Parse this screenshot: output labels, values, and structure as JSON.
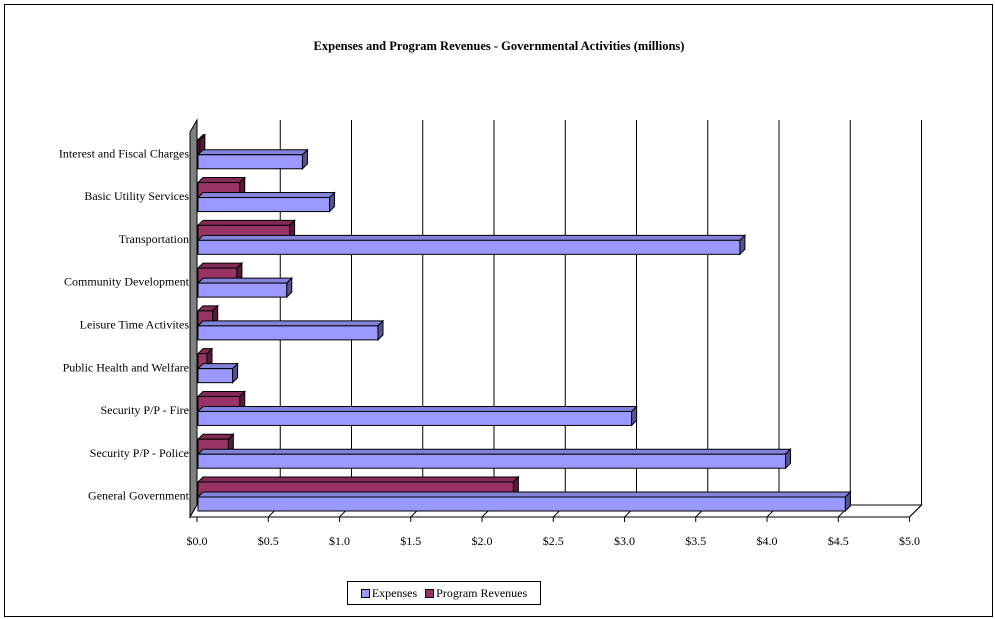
{
  "chart_data": {
    "type": "bar",
    "orientation": "horizontal",
    "title": "Expenses and Program Revenues - Governmental Activities (millions)",
    "categories": [
      "General Government",
      "Security P/P - Police",
      "Security P/P - Fire",
      "Public Health and Welfare",
      "Leisure Time Activites",
      "Community Development",
      "Transportation",
      "Basic Utility Services",
      "Interest and Fiscal Charges"
    ],
    "series": [
      {
        "name": "Expenses",
        "color": "#9999ff",
        "values": [
          4.55,
          4.13,
          3.05,
          0.25,
          1.27,
          0.63,
          3.81,
          0.93,
          0.74
        ]
      },
      {
        "name": "Program Revenues",
        "color": "#993366",
        "values": [
          2.22,
          0.22,
          0.3,
          0.07,
          0.11,
          0.28,
          0.65,
          0.3,
          0.02
        ]
      }
    ],
    "xlim": [
      0,
      5
    ],
    "x_ticks": [
      "$0.0",
      "$0.5",
      "$1.0",
      "$1.5",
      "$2.0",
      "$2.5",
      "$3.0",
      "$3.5",
      "$4.0",
      "$4.5",
      "$5.0"
    ],
    "x_tick_values": [
      0,
      0.5,
      1,
      1.5,
      2,
      2.5,
      3,
      3.5,
      4,
      4.5,
      5
    ],
    "grid": true,
    "legend_position": "bottom",
    "style_3d": true
  }
}
